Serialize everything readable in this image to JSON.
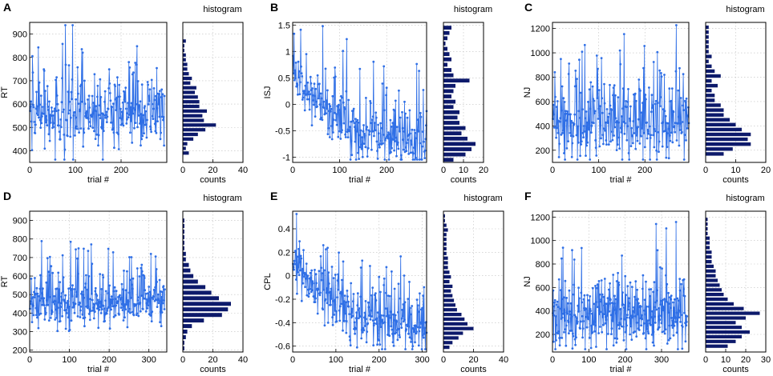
{
  "chart_data": [
    {
      "panel": "A",
      "type": "line",
      "xlabel": "trial #",
      "ylabel": "RT",
      "xlim": [
        0,
        300
      ],
      "xticks": [
        0,
        100,
        200
      ],
      "ylim": [
        350,
        950
      ],
      "yticks": [
        400,
        500,
        600,
        700,
        800,
        900
      ],
      "n_trials": 295,
      "trend": "flat",
      "mean": 555,
      "spread": 95,
      "hist": {
        "title": "histogram",
        "xlabel": "counts",
        "xlim": [
          0,
          40
        ],
        "xticks": [
          0,
          20,
          40
        ],
        "bin_centers": [
          390,
          410,
          430,
          450,
          470,
          490,
          510,
          530,
          550,
          570,
          590,
          610,
          630,
          650,
          670,
          690,
          710,
          730,
          750,
          770,
          790,
          810,
          830,
          850,
          870
        ],
        "counts": [
          4,
          2,
          3,
          7,
          10,
          15,
          22,
          14,
          13,
          16,
          11,
          11,
          10,
          8,
          9,
          5,
          6,
          4,
          3,
          3,
          2,
          2,
          1,
          1,
          2
        ]
      }
    },
    {
      "panel": "B",
      "type": "line",
      "xlabel": "trial #",
      "ylabel": "ISJ",
      "xlim": [
        0,
        285
      ],
      "xticks": [
        0,
        100,
        200
      ],
      "ylim": [
        -1.1,
        1.55
      ],
      "yticks": [
        -1,
        -0.5,
        0,
        0.5,
        1,
        1.5
      ],
      "n_trials": 285,
      "trend": "decreasing",
      "start": 0.7,
      "end": -0.75,
      "spread": 0.38,
      "hist": {
        "title": "histogram",
        "xlabel": "counts",
        "xlim": [
          0,
          20
        ],
        "xticks": [
          0,
          10,
          20
        ],
        "bin_centers": [
          -1.05,
          -0.95,
          -0.85,
          -0.75,
          -0.65,
          -0.55,
          -0.45,
          -0.35,
          -0.25,
          -0.15,
          -0.05,
          0.05,
          0.15,
          0.25,
          0.35,
          0.45,
          0.55,
          0.65,
          0.75,
          0.85,
          0.95,
          1.05,
          1.15,
          1.25,
          1.35,
          1.45
        ],
        "counts": [
          5,
          11,
          14,
          16,
          12,
          9,
          11,
          8,
          7,
          8,
          5,
          6,
          4,
          5,
          6,
          13,
          5,
          4,
          2,
          4,
          3,
          2,
          1,
          2,
          3,
          4
        ]
      }
    },
    {
      "panel": "C",
      "type": "line",
      "xlabel": "trial #",
      "ylabel": "NJ",
      "xlim": [
        0,
        295
      ],
      "xticks": [
        0,
        100,
        200
      ],
      "ylim": [
        100,
        1250
      ],
      "yticks": [
        200,
        400,
        600,
        800,
        1000,
        1200
      ],
      "n_trials": 295,
      "trend": "flat",
      "mean": 420,
      "spread": 220,
      "hist": {
        "title": "histogram",
        "xlabel": "counts",
        "xlim": [
          0,
          20
        ],
        "xticks": [
          0,
          10,
          20
        ],
        "bin_centers": [
          170,
          210,
          250,
          290,
          330,
          370,
          410,
          450,
          490,
          530,
          570,
          610,
          650,
          690,
          730,
          770,
          810,
          850,
          890,
          930,
          970,
          1010,
          1050,
          1090,
          1130,
          1170,
          1210
        ],
        "counts": [
          6,
          9,
          15,
          14,
          15,
          12,
          10,
          8,
          6,
          6,
          5,
          3,
          3,
          2,
          4,
          2,
          5,
          3,
          2,
          1,
          2,
          1,
          1,
          1,
          1,
          1,
          1
        ]
      }
    },
    {
      "panel": "D",
      "type": "line",
      "xlabel": "trial #",
      "ylabel": "RT",
      "xlim": [
        0,
        345
      ],
      "xticks": [
        0,
        100,
        200,
        300
      ],
      "ylim": [
        190,
        950
      ],
      "yticks": [
        200,
        300,
        400,
        500,
        600,
        700,
        800,
        900
      ],
      "n_trials": 340,
      "trend": "flat",
      "mean": 455,
      "spread": 85,
      "hist": {
        "title": "histogram",
        "xlabel": "counts",
        "xlim": [
          0,
          40
        ],
        "xticks": [
          0,
          20,
          40
        ],
        "bin_centers": [
          210,
          240,
          270,
          300,
          330,
          360,
          390,
          420,
          450,
          480,
          510,
          540,
          570,
          600,
          630,
          660,
          690,
          720,
          750,
          780,
          810,
          840,
          870,
          900
        ],
        "counts": [
          1,
          1,
          2,
          3,
          6,
          14,
          26,
          30,
          32,
          24,
          19,
          15,
          10,
          7,
          5,
          4,
          2,
          2,
          1,
          1,
          1,
          1,
          1,
          1
        ]
      }
    },
    {
      "panel": "E",
      "type": "line",
      "xlabel": "trial #",
      "ylabel": "CPL",
      "xlim": [
        0,
        310
      ],
      "xticks": [
        0,
        100,
        200,
        300
      ],
      "ylim": [
        -0.65,
        0.55
      ],
      "yticks": [
        -0.6,
        -0.4,
        -0.2,
        0,
        0.2,
        0.4
      ],
      "n_trials": 310,
      "trend": "decreasing",
      "start": 0.15,
      "end": -0.45,
      "spread": 0.15,
      "hist": {
        "title": "histogram",
        "xlabel": "counts",
        "xlim": [
          0,
          40
        ],
        "xticks": [
          0,
          20,
          40
        ],
        "bin_centers": [
          -0.61,
          -0.57,
          -0.53,
          -0.49,
          -0.45,
          -0.41,
          -0.37,
          -0.33,
          -0.29,
          -0.25,
          -0.21,
          -0.17,
          -0.13,
          -0.09,
          -0.05,
          -0.01,
          0.03,
          0.07,
          0.11,
          0.15,
          0.19,
          0.23,
          0.27,
          0.31,
          0.35,
          0.39,
          0.43,
          0.47,
          0.51
        ],
        "counts": [
          4,
          6,
          10,
          13,
          20,
          16,
          14,
          12,
          9,
          8,
          7,
          6,
          5,
          6,
          4,
          5,
          4,
          3,
          3,
          3,
          2,
          2,
          2,
          2,
          2,
          3,
          2,
          1,
          1
        ]
      }
    },
    {
      "panel": "F",
      "type": "line",
      "xlabel": "trial #",
      "ylabel": "NJ",
      "xlim": [
        0,
        375
      ],
      "xticks": [
        0,
        100,
        200,
        300
      ],
      "ylim": [
        50,
        1250
      ],
      "yticks": [
        200,
        400,
        600,
        800,
        1000,
        1200
      ],
      "n_trials": 370,
      "trend": "flat",
      "mean": 360,
      "spread": 190,
      "hist": {
        "title": "histogram",
        "xlabel": "counts",
        "xlim": [
          0,
          30
        ],
        "xticks": [
          0,
          10,
          20,
          30
        ],
        "bin_centers": [
          100,
          140,
          180,
          220,
          260,
          300,
          340,
          380,
          420,
          460,
          500,
          540,
          580,
          620,
          660,
          700,
          740,
          780,
          820,
          860,
          900,
          940,
          980,
          1020,
          1060,
          1100,
          1140,
          1180
        ],
        "counts": [
          11,
          15,
          18,
          22,
          18,
          15,
          20,
          27,
          19,
          14,
          11,
          9,
          8,
          7,
          6,
          5,
          5,
          4,
          3,
          3,
          3,
          2,
          2,
          2,
          1,
          1,
          1,
          1
        ]
      }
    }
  ]
}
